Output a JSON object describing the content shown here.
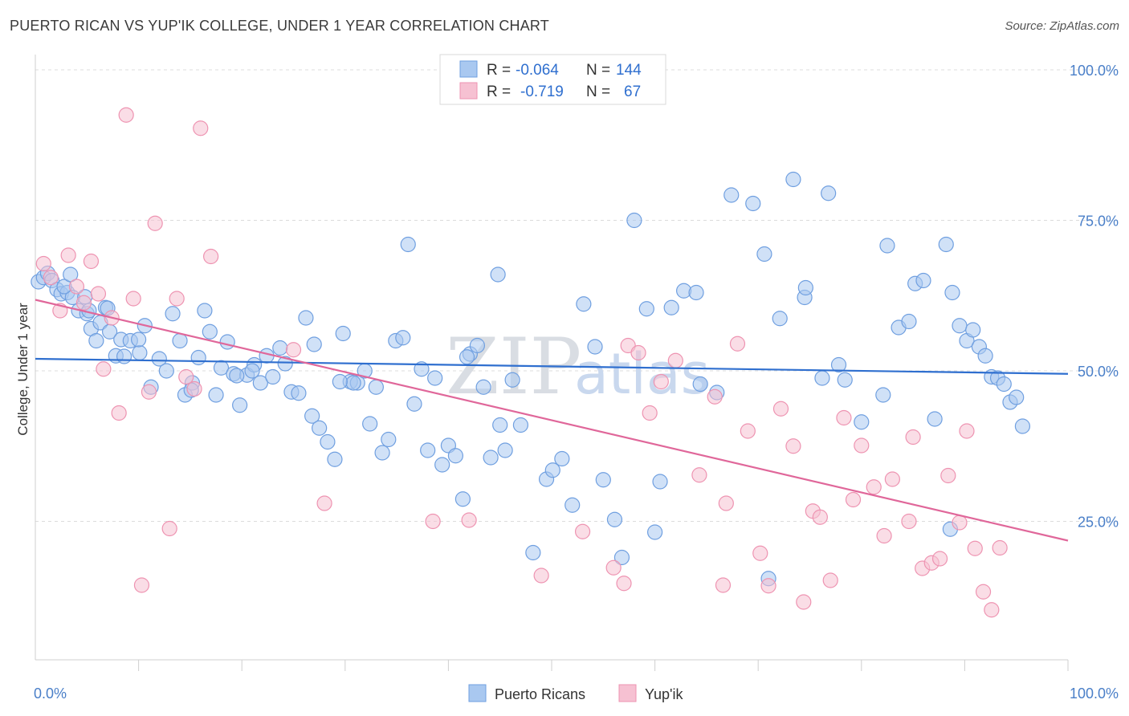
{
  "header": {
    "title": "PUERTO RICAN VS YUP'IK COLLEGE, UNDER 1 YEAR CORRELATION CHART",
    "source": "Source: ZipAtlas.com"
  },
  "watermark": {
    "zip": "ZIP",
    "atlas": "atlas"
  },
  "colors": {
    "blue_fill": "#a9c8f0",
    "blue_stroke": "#6f9fe0",
    "blue_line": "#2f6fcf",
    "pink_fill": "#f6c1d2",
    "pink_stroke": "#ee93b1",
    "pink_line": "#e0679a",
    "grid": "#dcdcdc",
    "axis_label": "#4a7fc8"
  },
  "legend_box": {
    "rows": [
      {
        "r_label": "R =",
        "r_value": "-0.064",
        "n_label": "N =",
        "n_value": "144",
        "series": "blue"
      },
      {
        "r_label": "R =",
        "r_value": "-0.719",
        "n_label": "N =",
        "n_value": "67",
        "series": "pink"
      }
    ]
  },
  "chart_data": {
    "type": "scatter",
    "title": "PUERTO RICAN VS YUP'IK COLLEGE, UNDER 1 YEAR CORRELATION CHART",
    "xlabel": "",
    "ylabel": "College, Under 1 year",
    "xlim": [
      0,
      100
    ],
    "ylim": [
      2,
      102
    ],
    "x_tick_labels": [
      {
        "value": 0,
        "label": "0.0%"
      },
      {
        "value": 100,
        "label": "100.0%"
      }
    ],
    "y_tick_labels": [
      {
        "value": 25,
        "label": "25.0%"
      },
      {
        "value": 50,
        "label": "50.0%"
      },
      {
        "value": 75,
        "label": "75.0%"
      },
      {
        "value": 100,
        "label": "100.0%"
      }
    ],
    "grid": true,
    "legend_placement": "bottom-center",
    "series": [
      {
        "name": "Puerto Ricans",
        "color": "#a9c8f0",
        "trend": {
          "x": [
            0,
            100
          ],
          "y": [
            52.0,
            49.5
          ]
        },
        "points": [
          [
            0.3,
            64.8
          ],
          [
            0.8,
            65.5
          ],
          [
            1.2,
            66.2
          ],
          [
            1.6,
            65.0
          ],
          [
            2.1,
            63.5
          ],
          [
            2.5,
            62.8
          ],
          [
            3.1,
            63.0
          ],
          [
            3.6,
            62.2
          ],
          [
            4.2,
            60.0
          ],
          [
            5.0,
            59.5
          ],
          [
            5.4,
            57.0
          ],
          [
            5.9,
            55.0
          ],
          [
            6.3,
            58.0
          ],
          [
            6.8,
            60.5
          ],
          [
            7.2,
            56.5
          ],
          [
            7.8,
            52.5
          ],
          [
            8.3,
            55.2
          ],
          [
            9.2,
            55.0
          ],
          [
            10.1,
            53.0
          ],
          [
            10.6,
            57.5
          ],
          [
            11.2,
            47.3
          ],
          [
            12.0,
            52.0
          ],
          [
            12.7,
            50.0
          ],
          [
            13.3,
            59.5
          ],
          [
            14.0,
            55.0
          ],
          [
            14.5,
            46.0
          ],
          [
            15.2,
            48.0
          ],
          [
            15.8,
            52.2
          ],
          [
            16.4,
            60.0
          ],
          [
            16.9,
            56.5
          ],
          [
            17.5,
            46.0
          ],
          [
            18.0,
            50.5
          ],
          [
            18.6,
            54.8
          ],
          [
            19.2,
            49.5
          ],
          [
            19.8,
            44.3
          ],
          [
            20.5,
            49.3
          ],
          [
            21.2,
            51.0
          ],
          [
            21.8,
            48.0
          ],
          [
            22.4,
            52.5
          ],
          [
            23.0,
            49.0
          ],
          [
            23.7,
            53.8
          ],
          [
            24.2,
            51.2
          ],
          [
            24.8,
            46.5
          ],
          [
            25.5,
            46.3
          ],
          [
            26.2,
            58.8
          ],
          [
            26.8,
            42.5
          ],
          [
            27.5,
            40.5
          ],
          [
            28.3,
            38.2
          ],
          [
            29.0,
            35.3
          ],
          [
            29.8,
            56.2
          ],
          [
            30.5,
            48.2
          ],
          [
            31.2,
            48.0
          ],
          [
            31.9,
            50.0
          ],
          [
            32.4,
            41.2
          ],
          [
            33.0,
            47.3
          ],
          [
            33.6,
            36.4
          ],
          [
            34.2,
            38.6
          ],
          [
            34.9,
            55.0
          ],
          [
            35.6,
            55.5
          ],
          [
            36.1,
            71.0
          ],
          [
            36.7,
            44.5
          ],
          [
            37.4,
            50.3
          ],
          [
            38.0,
            36.8
          ],
          [
            38.7,
            48.8
          ],
          [
            39.4,
            34.4
          ],
          [
            40.0,
            37.6
          ],
          [
            40.7,
            35.9
          ],
          [
            41.4,
            28.7
          ],
          [
            42.1,
            52.8
          ],
          [
            42.8,
            54.2
          ],
          [
            43.4,
            47.3
          ],
          [
            44.1,
            35.6
          ],
          [
            44.8,
            66.0
          ],
          [
            45.5,
            36.8
          ],
          [
            46.2,
            48.5
          ],
          [
            47.0,
            41.0
          ],
          [
            48.2,
            19.8
          ],
          [
            49.5,
            32.0
          ],
          [
            50.1,
            33.5
          ],
          [
            51.0,
            35.4
          ],
          [
            52.0,
            27.7
          ],
          [
            53.1,
            61.1
          ],
          [
            54.2,
            54.0
          ],
          [
            55.0,
            31.9
          ],
          [
            56.1,
            25.3
          ],
          [
            56.8,
            19.0
          ],
          [
            58.0,
            75.0
          ],
          [
            59.2,
            60.3
          ],
          [
            60.5,
            31.6
          ],
          [
            61.6,
            60.5
          ],
          [
            62.8,
            63.3
          ],
          [
            64.0,
            63.0
          ],
          [
            66.0,
            46.4
          ],
          [
            67.4,
            79.2
          ],
          [
            69.5,
            77.8
          ],
          [
            70.6,
            69.4
          ],
          [
            72.1,
            58.7
          ],
          [
            73.4,
            81.8
          ],
          [
            74.5,
            62.2
          ],
          [
            76.8,
            79.5
          ],
          [
            77.8,
            51.0
          ],
          [
            78.4,
            48.5
          ],
          [
            80.0,
            41.5
          ],
          [
            82.1,
            46.0
          ],
          [
            83.6,
            57.2
          ],
          [
            84.6,
            58.2
          ],
          [
            85.2,
            64.5
          ],
          [
            86.0,
            65.0
          ],
          [
            87.1,
            42.0
          ],
          [
            88.2,
            71.0
          ],
          [
            88.8,
            63.0
          ],
          [
            89.5,
            57.5
          ],
          [
            90.2,
            55.0
          ],
          [
            90.8,
            56.8
          ],
          [
            91.4,
            54.0
          ],
          [
            92.0,
            52.5
          ],
          [
            92.6,
            49.0
          ],
          [
            93.2,
            48.8
          ],
          [
            93.8,
            47.8
          ],
          [
            94.4,
            44.8
          ],
          [
            95.0,
            45.6
          ],
          [
            95.6,
            40.8
          ],
          [
            74.6,
            63.8
          ],
          [
            76.2,
            48.8
          ],
          [
            82.5,
            70.8
          ],
          [
            88.6,
            23.7
          ],
          [
            71.0,
            15.5
          ],
          [
            60.0,
            23.2
          ],
          [
            45.0,
            41.0
          ],
          [
            30.8,
            48.0
          ],
          [
            27.0,
            54.4
          ],
          [
            19.5,
            49.2
          ],
          [
            15.1,
            46.8
          ],
          [
            10.0,
            55.2
          ],
          [
            8.6,
            52.4
          ],
          [
            7.0,
            60.4
          ],
          [
            5.2,
            60.0
          ],
          [
            2.8,
            64.0
          ],
          [
            3.4,
            66.0
          ],
          [
            4.8,
            62.3
          ],
          [
            21.0,
            50.0
          ],
          [
            29.5,
            48.2
          ],
          [
            41.8,
            52.3
          ],
          [
            64.4,
            47.8
          ]
        ]
      },
      {
        "name": "Yup'ik",
        "color": "#f6c1d2",
        "trend": {
          "x": [
            0,
            100
          ],
          "y": [
            61.8,
            21.8
          ]
        },
        "points": [
          [
            0.8,
            67.8
          ],
          [
            1.5,
            65.5
          ],
          [
            2.4,
            60.0
          ],
          [
            3.2,
            69.2
          ],
          [
            4.0,
            64.0
          ],
          [
            4.7,
            61.3
          ],
          [
            5.4,
            68.2
          ],
          [
            6.1,
            62.8
          ],
          [
            6.6,
            50.3
          ],
          [
            7.4,
            58.8
          ],
          [
            8.1,
            43.0
          ],
          [
            8.8,
            92.5
          ],
          [
            9.5,
            62.0
          ],
          [
            10.3,
            14.4
          ],
          [
            11.0,
            46.5
          ],
          [
            11.6,
            74.5
          ],
          [
            13.0,
            23.8
          ],
          [
            13.7,
            62.0
          ],
          [
            14.6,
            49.0
          ],
          [
            15.4,
            47.0
          ],
          [
            16.0,
            90.3
          ],
          [
            17.0,
            69.0
          ],
          [
            25.0,
            53.5
          ],
          [
            28.0,
            28.0
          ],
          [
            38.5,
            25.0
          ],
          [
            42.0,
            25.2
          ],
          [
            49.0,
            16.0
          ],
          [
            53.0,
            23.3
          ],
          [
            56.0,
            17.3
          ],
          [
            57.4,
            54.2
          ],
          [
            58.4,
            53.0
          ],
          [
            59.5,
            43.0
          ],
          [
            60.6,
            48.2
          ],
          [
            62.0,
            51.7
          ],
          [
            64.3,
            32.7
          ],
          [
            65.8,
            45.7
          ],
          [
            66.9,
            28.0
          ],
          [
            68.0,
            54.5
          ],
          [
            69.0,
            40.0
          ],
          [
            70.2,
            19.7
          ],
          [
            71.0,
            14.3
          ],
          [
            72.2,
            43.7
          ],
          [
            73.4,
            37.5
          ],
          [
            74.4,
            11.6
          ],
          [
            75.3,
            26.7
          ],
          [
            76.0,
            25.7
          ],
          [
            77.0,
            15.2
          ],
          [
            78.3,
            42.2
          ],
          [
            79.2,
            28.6
          ],
          [
            80.0,
            37.6
          ],
          [
            81.2,
            30.7
          ],
          [
            82.2,
            22.6
          ],
          [
            83.0,
            32.0
          ],
          [
            84.6,
            25.0
          ],
          [
            85.0,
            39.0
          ],
          [
            85.9,
            17.2
          ],
          [
            86.8,
            18.1
          ],
          [
            87.6,
            18.8
          ],
          [
            88.4,
            32.6
          ],
          [
            89.5,
            24.8
          ],
          [
            90.2,
            40.0
          ],
          [
            91.0,
            20.5
          ],
          [
            91.8,
            13.3
          ],
          [
            92.6,
            10.3
          ],
          [
            93.4,
            20.6
          ],
          [
            66.6,
            14.4
          ],
          [
            57.0,
            14.7
          ]
        ]
      }
    ]
  }
}
